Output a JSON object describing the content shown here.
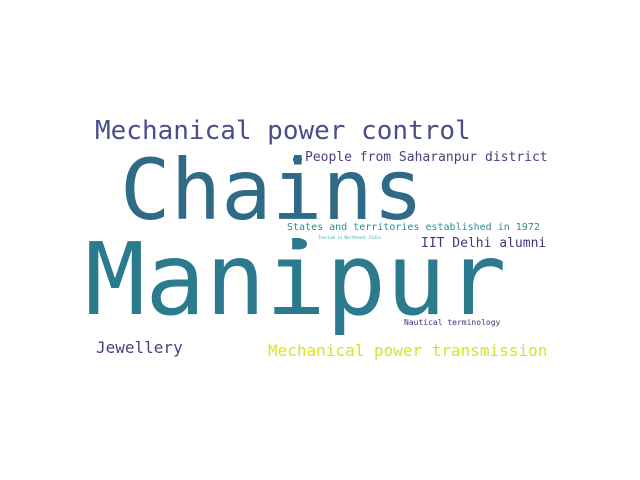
{
  "words": {
    "mechanical_power_control": {
      "text": "Mechanical power control",
      "color": "#4a4f8c"
    },
    "chains": {
      "text": "Chains",
      "color": "#2f6a86"
    },
    "people_saharanpur": {
      "text": "People from Saharanpur district",
      "color": "#4a3f83"
    },
    "states_territories_1972": {
      "text": "States and territories established in 1972",
      "color": "#2f8d8a"
    },
    "tourism_northeast_india": {
      "text": "Tourism in Northeast India",
      "color": "#3bb0a2"
    },
    "iit_delhi_alumni": {
      "text": "IIT Delhi alumni",
      "color": "#3c3a7c"
    },
    "manipur": {
      "text": "Manipur",
      "color": "#2b7a8e"
    },
    "nautical_terminology": {
      "text": "Nautical terminology",
      "color": "#4a2f7a"
    },
    "jewellery": {
      "text": "Jewellery",
      "color": "#44437f"
    },
    "mechanical_power_transmission": {
      "text": "Mechanical power transmission",
      "color": "#d8e22c"
    }
  },
  "dots": {
    "dot_1": {
      "color": "#2f6a86"
    },
    "dot_2": {
      "color": "#2b7a8e"
    }
  }
}
